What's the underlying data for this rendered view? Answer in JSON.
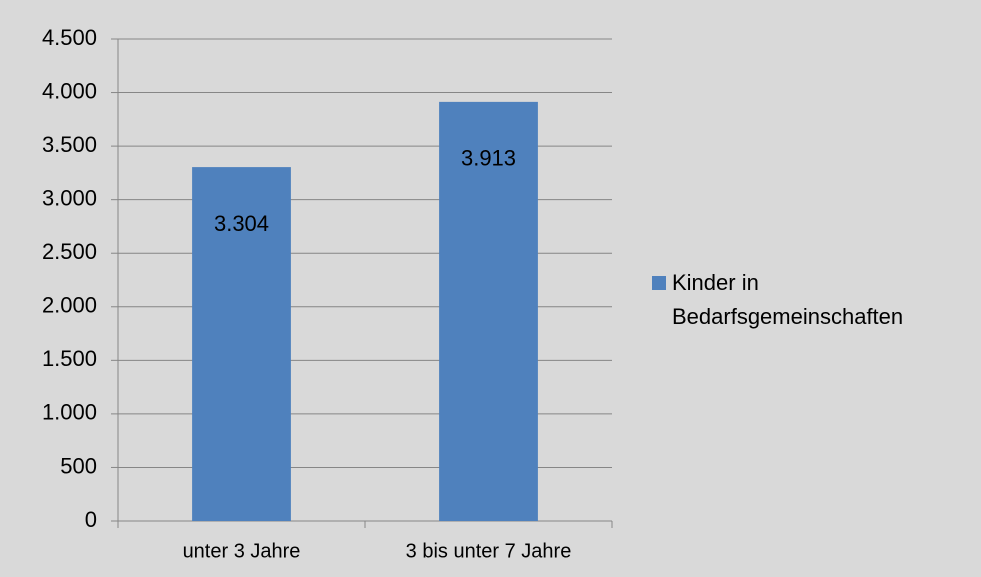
{
  "chart_data": {
    "type": "bar",
    "categories": [
      "unter 3 Jahre",
      "3 bis unter 7 Jahre"
    ],
    "series": [
      {
        "name": "Kinder in Bedarfsgemeinschaften",
        "color": "#4f81bd",
        "values": [
          3304,
          3913
        ],
        "value_labels": [
          "3.304",
          "3.913"
        ]
      }
    ],
    "ylim": [
      0,
      4500
    ],
    "yticks": [
      0,
      500,
      {
        "value": 1000,
        "label": "1.000"
      },
      {
        "value": 1500,
        "label": "1.500"
      },
      {
        "value": 2000,
        "label": "2.000"
      },
      {
        "value": 2500,
        "label": "2.500"
      },
      {
        "value": 3000,
        "label": "3.000"
      },
      {
        "value": 3500,
        "label": "3.500"
      },
      {
        "value": 4000,
        "label": "4.000"
      },
      {
        "value": 4500,
        "label": "4.500"
      }
    ],
    "grid": true,
    "legend": "right"
  }
}
